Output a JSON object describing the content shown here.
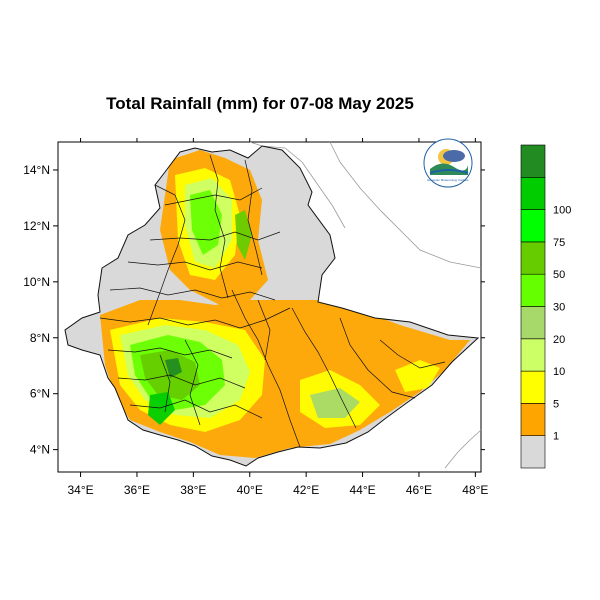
{
  "map": {
    "title": "Total Rainfall (mm) for 07-08 May 2025",
    "x_ticks": [
      "34°E",
      "36°E",
      "38°E",
      "40°E",
      "42°E",
      "44°E",
      "46°E",
      "48°E"
    ],
    "y_ticks": [
      "14°N",
      "12°N",
      "10°N",
      "8°N",
      "6°N",
      "4°N"
    ],
    "lon_range": [
      33.2,
      48.2
    ],
    "lat_range": [
      3.2,
      15.0
    ],
    "logo_text": "Ethiopian Meteorology Institute"
  },
  "colorbar": {
    "labels": [
      "1",
      "5",
      "10",
      "20",
      "30",
      "50",
      "75",
      "100"
    ],
    "colors": [
      "#d9d9d9",
      "#ffa500",
      "#ffff00",
      "#ccff66",
      "#a6d96a",
      "#66ff00",
      "#66cc00",
      "#00ff00",
      "#00cc00",
      "#228b22"
    ]
  },
  "palette": {
    "background": "#d9d9d9",
    "low": "#ffa500",
    "medium": "#ffff00",
    "green": "#66cc00",
    "dark_green": "#228b22"
  }
}
